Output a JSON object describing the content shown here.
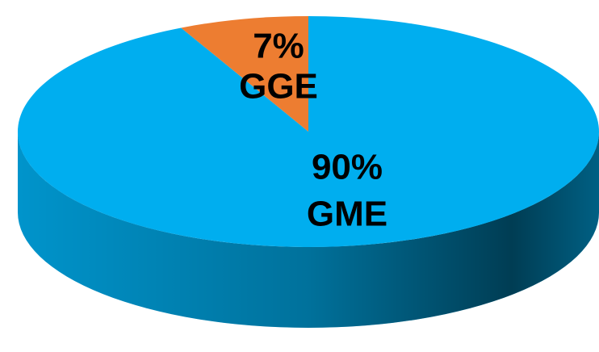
{
  "chart_data": {
    "type": "pie",
    "categories": [
      "GME",
      "GGE"
    ],
    "values": [
      90,
      7
    ],
    "value_labels": [
      "90%",
      "7%"
    ],
    "colors": [
      "#00aeef",
      "#ed7d31"
    ]
  }
}
